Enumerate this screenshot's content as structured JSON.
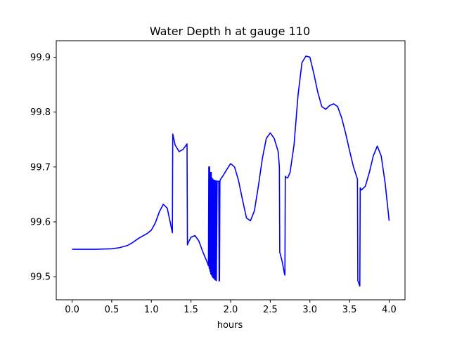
{
  "chart_data": {
    "type": "line",
    "title": "Water Depth h at gauge 110",
    "xlabel": "hours",
    "ylabel": "",
    "xlim": [
      -0.2,
      4.2
    ],
    "ylim": [
      99.458,
      99.93
    ],
    "xticks": [
      0.0,
      0.5,
      1.0,
      1.5,
      2.0,
      2.5,
      3.0,
      3.5,
      4.0
    ],
    "xtick_labels": [
      "0.0",
      "0.5",
      "1.0",
      "1.5",
      "2.0",
      "2.5",
      "3.0",
      "3.5",
      "4.0"
    ],
    "yticks": [
      99.5,
      99.6,
      99.7,
      99.8,
      99.9
    ],
    "ytick_labels": [
      "99.5",
      "99.6",
      "99.7",
      "99.8",
      "99.9"
    ],
    "grid": false,
    "legend": "none",
    "series": [
      {
        "color": "#0000ff",
        "x": [
          0.0,
          0.3,
          0.5,
          0.6,
          0.7,
          0.75,
          0.8,
          0.85,
          0.9,
          0.95,
          1.0,
          1.05,
          1.1,
          1.15,
          1.2,
          1.24,
          1.265,
          1.27,
          1.3,
          1.35,
          1.4,
          1.45,
          1.455,
          1.465,
          1.5,
          1.55,
          1.6,
          1.65,
          1.7,
          1.72,
          1.725,
          1.73,
          1.735,
          1.74,
          1.745,
          1.75,
          1.755,
          1.76,
          1.765,
          1.77,
          1.775,
          1.78,
          1.785,
          1.79,
          1.795,
          1.8,
          1.805,
          1.81,
          1.815,
          1.82,
          1.83,
          1.84,
          1.85,
          1.855,
          1.86,
          1.865,
          1.87,
          1.875,
          1.9,
          1.95,
          2.0,
          2.05,
          2.1,
          2.15,
          2.2,
          2.25,
          2.3,
          2.35,
          2.4,
          2.45,
          2.5,
          2.55,
          2.6,
          2.615,
          2.62,
          2.65,
          2.68,
          2.685,
          2.69,
          2.7,
          2.72,
          2.75,
          2.8,
          2.85,
          2.9,
          2.95,
          3.0,
          3.05,
          3.1,
          3.15,
          3.2,
          3.25,
          3.3,
          3.35,
          3.4,
          3.45,
          3.5,
          3.55,
          3.6,
          3.605,
          3.63,
          3.635,
          3.65,
          3.7,
          3.75,
          3.8,
          3.85,
          3.9,
          3.95,
          4.0
        ],
        "y": [
          99.55,
          99.55,
          99.551,
          99.553,
          99.557,
          99.561,
          99.566,
          99.571,
          99.575,
          99.579,
          99.585,
          99.598,
          99.618,
          99.632,
          99.625,
          99.598,
          99.58,
          99.76,
          99.74,
          99.728,
          99.732,
          99.742,
          99.558,
          99.562,
          99.572,
          99.575,
          99.565,
          99.545,
          99.528,
          99.52,
          99.7,
          99.515,
          99.7,
          99.51,
          99.69,
          99.505,
          99.69,
          99.503,
          99.68,
          99.5,
          99.678,
          99.498,
          99.676,
          99.497,
          99.676,
          99.495,
          99.675,
          99.494,
          99.675,
          99.493,
          99.674,
          99.674,
          99.674,
          99.492,
          99.494,
          99.675,
          99.676,
          99.678,
          99.683,
          99.695,
          99.706,
          99.7,
          99.675,
          99.64,
          99.607,
          99.602,
          99.62,
          99.665,
          99.715,
          99.752,
          99.762,
          99.752,
          99.728,
          99.7,
          99.545,
          99.528,
          99.505,
          99.503,
          99.683,
          99.681,
          99.68,
          99.69,
          99.74,
          99.83,
          99.89,
          99.902,
          99.9,
          99.87,
          99.836,
          99.81,
          99.805,
          99.812,
          99.815,
          99.81,
          99.79,
          99.762,
          99.73,
          99.7,
          99.678,
          99.493,
          99.483,
          99.662,
          99.658,
          99.665,
          99.69,
          99.72,
          99.738,
          99.72,
          99.67,
          99.602
        ]
      }
    ]
  }
}
